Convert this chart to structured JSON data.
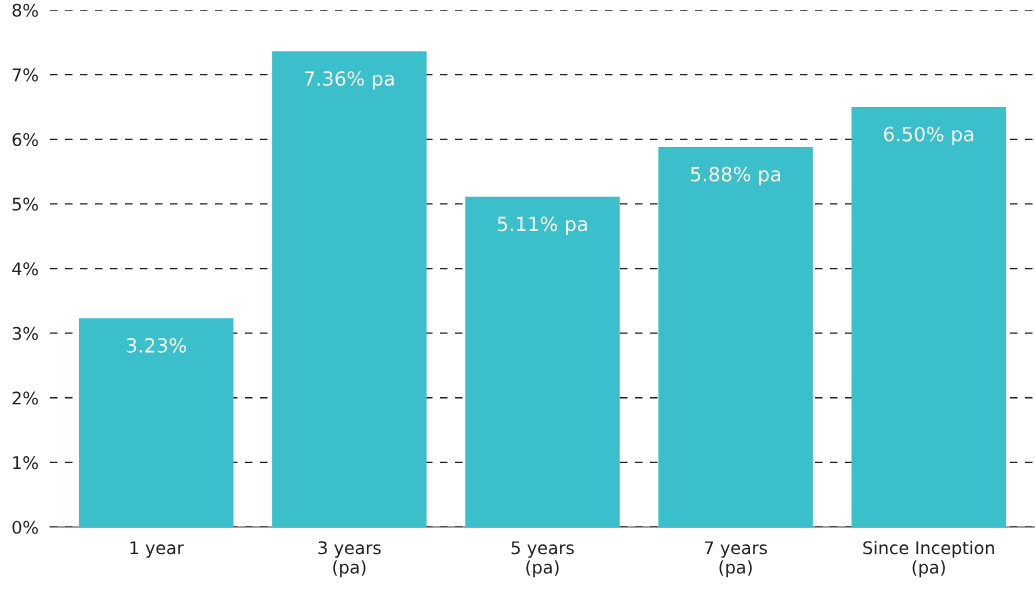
{
  "chart_data": {
    "type": "bar",
    "categories": [
      "1 year",
      "3 years\n(pa)",
      "5 years\n(pa)",
      "7 years\n(pa)",
      "Since Inception\n(pa)"
    ],
    "values": [
      3.23,
      7.36,
      5.11,
      5.88,
      6.5
    ],
    "value_labels": [
      "3.23%",
      "7.36% pa",
      "5.11% pa",
      "5.88% pa",
      "6.50% pa"
    ],
    "color": "#3bbfca",
    "ylim": [
      0,
      8
    ],
    "yticks": [
      {
        "value": 0,
        "label": "0%"
      },
      {
        "value": 1,
        "label": "1%"
      },
      {
        "value": 2,
        "label": "2%"
      },
      {
        "value": 3,
        "label": "3%"
      },
      {
        "value": 4,
        "label": "4%"
      },
      {
        "value": 5,
        "label": "5%"
      },
      {
        "value": 6,
        "label": "6%"
      },
      {
        "value": 7,
        "label": "7%"
      },
      {
        "value": 8,
        "label": "8%"
      }
    ],
    "grid": "y"
  }
}
